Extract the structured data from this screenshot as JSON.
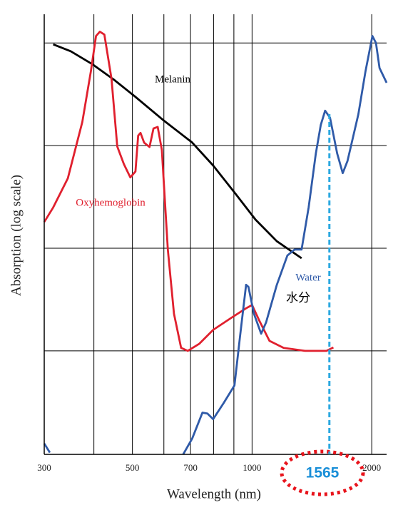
{
  "chart_data": {
    "type": "line",
    "xlabel": "Wavelength (nm)",
    "ylabel": "Absorption (log scale)",
    "xlog": true,
    "ylog": true,
    "xlim": [
      300,
      2180
    ],
    "ylim": [
      0.0098,
      200
    ],
    "xticks": [
      300,
      500,
      700,
      1000,
      2000
    ],
    "xgrid": [
      400,
      500,
      600,
      700,
      800,
      900,
      1000,
      2000
    ],
    "ygrid": [
      0.1,
      1,
      10,
      100
    ],
    "series": [
      {
        "name": "Melanin",
        "color": "#000000",
        "x": [
          316,
          350,
          397,
          449,
          508,
          597,
          707,
          798,
          903,
          1020,
          1154,
          1332
        ],
        "values": [
          97,
          83,
          62,
          44,
          30,
          17.8,
          10.7,
          6.4,
          3.5,
          1.9,
          1.17,
          0.8
        ]
      },
      {
        "name": "Oxyhemoglobin",
        "color": "#e0202e",
        "x": [
          300,
          316,
          344,
          374,
          393,
          405,
          414,
          425,
          443,
          458,
          476,
          494,
          509,
          517,
          524,
          535,
          552,
          565,
          579,
          593,
          614,
          636,
          663,
          689,
          736,
          798,
          887,
          966,
          1000,
          1041,
          1106,
          1201,
          1359,
          1539,
          1602
        ],
        "values": [
          1.8,
          2.5,
          4.8,
          17,
          53,
          117,
          129,
          121,
          45,
          9.8,
          6.6,
          4.9,
          5.6,
          12.5,
          13.3,
          10.7,
          9.7,
          14.7,
          15.2,
          9.1,
          0.97,
          0.23,
          0.107,
          0.1,
          0.117,
          0.16,
          0.21,
          0.26,
          0.28,
          0.2,
          0.125,
          0.107,
          0.1,
          0.1,
          0.108
        ]
      },
      {
        "name": "Water",
        "color": "#2f5aa8",
        "x": [
          300,
          310,
          null,
          671,
          707,
          750,
          772,
          798,
          848,
          903,
          933,
          966,
          979,
          1011,
          1054,
          1085,
          1154,
          1227,
          1279,
          1332,
          1388,
          1447,
          1489,
          1527,
          1571,
          1637,
          1691,
          1738,
          1851,
          1929,
          2008,
          2050,
          2093,
          2180
        ],
        "values": [
          0.0125,
          0.0102,
          null,
          0.0098,
          0.014,
          0.025,
          0.0245,
          0.0216,
          0.031,
          0.046,
          0.14,
          0.44,
          0.42,
          0.23,
          0.147,
          0.19,
          0.44,
          0.85,
          0.97,
          0.97,
          2.5,
          8.4,
          15.9,
          21.9,
          18.7,
          8.4,
          5.4,
          7.1,
          20.2,
          53,
          117,
          100,
          57,
          41
        ]
      }
    ],
    "annotation": "水分",
    "marker_x": 1565
  }
}
